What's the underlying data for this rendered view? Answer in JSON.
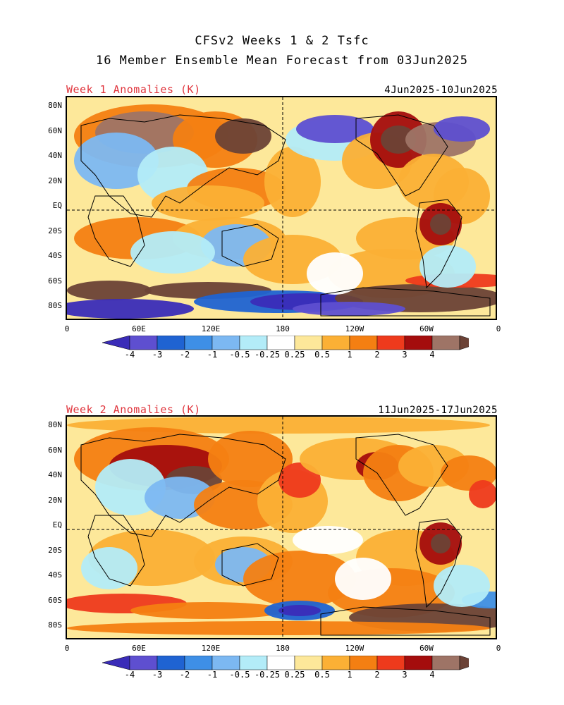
{
  "title_line1": "CFSv2 Weeks 1 & 2 Tsfc",
  "title_line2": "16 Member Ensemble Mean Forecast from 03Jun2025",
  "panels": [
    {
      "label": "Week 1 Anomalies (K)",
      "dates": "4Jun2025-10Jun2025"
    },
    {
      "label": "Week 2 Anomalies (K)",
      "dates": "11Jun2025-17Jun2025"
    }
  ],
  "lat_labels": [
    "80N",
    "60N",
    "40N",
    "20N",
    "EQ",
    "20S",
    "40S",
    "60S",
    "80S"
  ],
  "lon_labels": [
    "0",
    "60E",
    "120E",
    "180",
    "120W",
    "60W",
    "0"
  ],
  "colorbar": {
    "labels": [
      "-4",
      "-3",
      "-2",
      "-1",
      "-0.5",
      "-0.25",
      "0.25",
      "0.5",
      "1",
      "2",
      "3",
      "4"
    ],
    "colors": [
      "#3a2cb8",
      "#5e4fd0",
      "#1f63d2",
      "#3e8fe6",
      "#7cb8f2",
      "#b3ecf8",
      "#ffffff",
      "#fde89a",
      "#fbb035",
      "#f47f12",
      "#ee3a1c",
      "#a40d0d",
      "#9e7466",
      "#6b4236"
    ],
    "units": "K"
  },
  "style": {
    "title_label_color": "#e0343c"
  }
}
